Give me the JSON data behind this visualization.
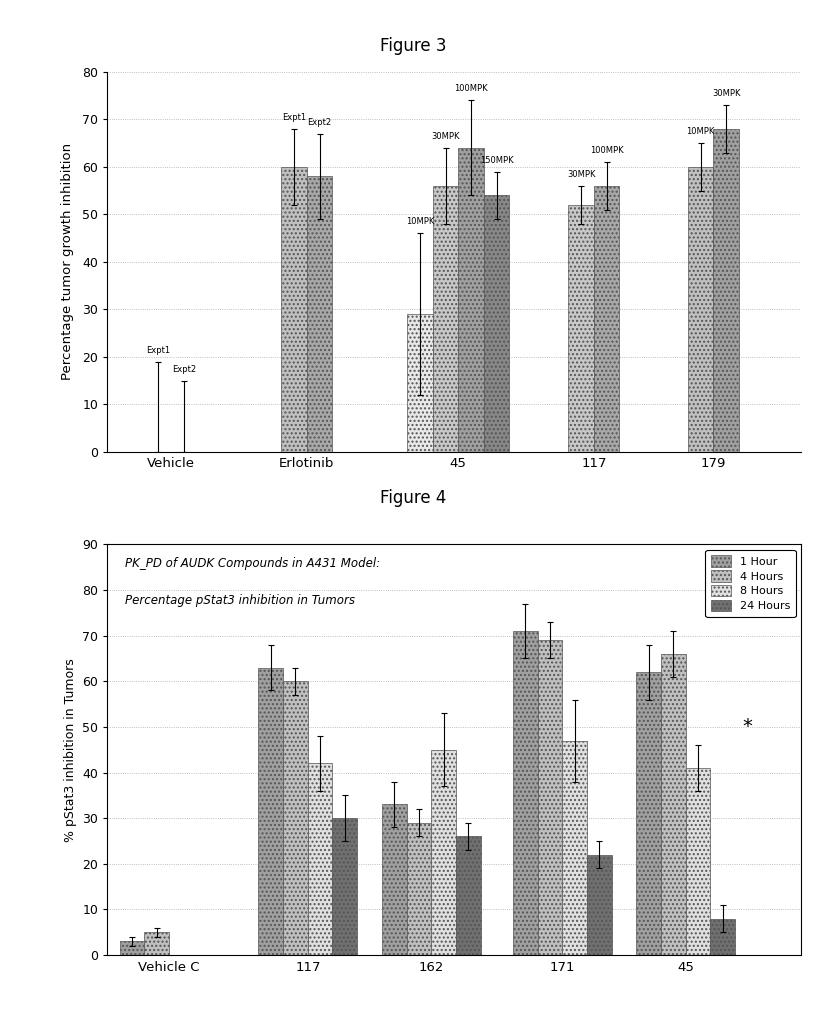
{
  "fig3": {
    "title": "Figure 3",
    "ylabel": "Percentage tumor growth inhibition",
    "ylim": [
      0,
      80
    ],
    "yticks": [
      0,
      10,
      20,
      30,
      40,
      50,
      60,
      70,
      80
    ],
    "groups": [
      "Vehicle",
      "Erlotinib",
      "45",
      "117",
      "179"
    ],
    "group_centers": [
      0.6,
      2.3,
      4.2,
      5.9,
      7.4
    ],
    "bar_width": 0.32,
    "xlim": [
      -0.2,
      8.5
    ],
    "bars": {
      "Vehicle": {
        "bars": [
          {
            "label": "Expt1",
            "value": 0,
            "error_up": 19,
            "error_dn": 0,
            "color": "#d8d8d8",
            "hatch": "...."
          },
          {
            "label": "Expt2",
            "value": 0,
            "error_up": 15,
            "error_dn": 0,
            "color": "#b8b8b8",
            "hatch": "...."
          }
        ]
      },
      "Erlotinib": {
        "bars": [
          {
            "label": "Expt1",
            "value": 60,
            "error_up": 8,
            "error_dn": 8,
            "color": "#c0c0c0",
            "hatch": "...."
          },
          {
            "label": "Expt2",
            "value": 58,
            "error_up": 9,
            "error_dn": 9,
            "color": "#a8a8a8",
            "hatch": "...."
          }
        ]
      },
      "45": {
        "bars": [
          {
            "label": "10MPK",
            "value": 29,
            "error_up": 17,
            "error_dn": 17,
            "color": "#e8e8e8",
            "hatch": "...."
          },
          {
            "label": "30MPK",
            "value": 56,
            "error_up": 8,
            "error_dn": 8,
            "color": "#c8c8c8",
            "hatch": "...."
          },
          {
            "label": "100MPK",
            "value": 64,
            "error_up": 10,
            "error_dn": 10,
            "color": "#a0a0a0",
            "hatch": "...."
          },
          {
            "label": "150MPK",
            "value": 54,
            "error_up": 5,
            "error_dn": 5,
            "color": "#888888",
            "hatch": "...."
          }
        ]
      },
      "117": {
        "bars": [
          {
            "label": "30MPK",
            "value": 52,
            "error_up": 4,
            "error_dn": 4,
            "color": "#c8c8c8",
            "hatch": "...."
          },
          {
            "label": "100MPK",
            "value": 56,
            "error_up": 5,
            "error_dn": 5,
            "color": "#a8a8a8",
            "hatch": "...."
          }
        ]
      },
      "179": {
        "bars": [
          {
            "label": "10MPK",
            "value": 60,
            "error_up": 5,
            "error_dn": 5,
            "color": "#c0c0c0",
            "hatch": "...."
          },
          {
            "label": "30MPK",
            "value": 68,
            "error_up": 5,
            "error_dn": 5,
            "color": "#a0a0a0",
            "hatch": "...."
          }
        ]
      }
    }
  },
  "fig4": {
    "title": "Figure 4",
    "chart_title_line1": "PK_PD of AUDK Compounds in A431 Model:",
    "chart_title_line2": "Percentage pStat3 inhibition in Tumors",
    "ylabel": "% pStat3 inhibition in Tumors",
    "ylim": [
      0,
      90
    ],
    "yticks": [
      0,
      10,
      20,
      30,
      40,
      50,
      60,
      70,
      80,
      90
    ],
    "groups": [
      "Vehicle C",
      "117",
      "162",
      "171",
      "45"
    ],
    "group_centers": [
      0.6,
      2.4,
      4.0,
      5.7,
      7.3
    ],
    "bar_width": 0.32,
    "xlim": [
      -0.2,
      8.8
    ],
    "legend": [
      "1 Hour",
      "4 Hours",
      "8 Hours",
      "24 Hours"
    ],
    "legend_colors": [
      "#a0a0a0",
      "#c0c0c0",
      "#e0e0e0",
      "#707070"
    ],
    "legend_hatches": [
      "....",
      "....",
      "....",
      "...."
    ],
    "bars": {
      "Vehicle C": {
        "bars": [
          {
            "label": "1 Hour",
            "value": 3,
            "error_up": 1,
            "error_dn": 1,
            "color": "#a0a0a0",
            "hatch": "...."
          },
          {
            "label": "4 Hours",
            "value": 5,
            "error_up": 1,
            "error_dn": 1,
            "color": "#c0c0c0",
            "hatch": "...."
          },
          {
            "label": "8 Hours",
            "value": 0,
            "error_up": 0,
            "error_dn": 0,
            "color": "#e0e0e0",
            "hatch": "...."
          },
          {
            "label": "24 Hours",
            "value": 0,
            "error_up": 0,
            "error_dn": 0,
            "color": "#707070",
            "hatch": "...."
          }
        ]
      },
      "117": {
        "bars": [
          {
            "label": "1 Hour",
            "value": 63,
            "error_up": 5,
            "error_dn": 5,
            "color": "#a0a0a0",
            "hatch": "...."
          },
          {
            "label": "4 Hours",
            "value": 60,
            "error_up": 3,
            "error_dn": 3,
            "color": "#c0c0c0",
            "hatch": "...."
          },
          {
            "label": "8 Hours",
            "value": 42,
            "error_up": 6,
            "error_dn": 6,
            "color": "#e0e0e0",
            "hatch": "...."
          },
          {
            "label": "24 Hours",
            "value": 30,
            "error_up": 5,
            "error_dn": 5,
            "color": "#707070",
            "hatch": "...."
          }
        ]
      },
      "162": {
        "bars": [
          {
            "label": "1 Hour",
            "value": 33,
            "error_up": 5,
            "error_dn": 5,
            "color": "#a0a0a0",
            "hatch": "...."
          },
          {
            "label": "4 Hours",
            "value": 29,
            "error_up": 3,
            "error_dn": 3,
            "color": "#c0c0c0",
            "hatch": "...."
          },
          {
            "label": "8 Hours",
            "value": 45,
            "error_up": 8,
            "error_dn": 8,
            "color": "#e0e0e0",
            "hatch": "...."
          },
          {
            "label": "24 Hours",
            "value": 26,
            "error_up": 3,
            "error_dn": 3,
            "color": "#707070",
            "hatch": "...."
          }
        ]
      },
      "171": {
        "bars": [
          {
            "label": "1 Hour",
            "value": 71,
            "error_up": 6,
            "error_dn": 6,
            "color": "#a0a0a0",
            "hatch": "...."
          },
          {
            "label": "4 Hours",
            "value": 69,
            "error_up": 4,
            "error_dn": 4,
            "color": "#c0c0c0",
            "hatch": "...."
          },
          {
            "label": "8 Hours",
            "value": 47,
            "error_up": 9,
            "error_dn": 9,
            "color": "#e0e0e0",
            "hatch": "...."
          },
          {
            "label": "24 Hours",
            "value": 22,
            "error_up": 3,
            "error_dn": 3,
            "color": "#707070",
            "hatch": "...."
          }
        ]
      },
      "45": {
        "bars": [
          {
            "label": "1 Hour",
            "value": 62,
            "error_up": 6,
            "error_dn": 6,
            "color": "#a0a0a0",
            "hatch": "...."
          },
          {
            "label": "4 Hours",
            "value": 66,
            "error_up": 5,
            "error_dn": 5,
            "color": "#c0c0c0",
            "hatch": "...."
          },
          {
            "label": "8 Hours",
            "value": 41,
            "error_up": 5,
            "error_dn": 5,
            "color": "#e0e0e0",
            "hatch": "...."
          },
          {
            "label": "24 Hours",
            "value": 8,
            "error_up": 3,
            "error_dn": 3,
            "color": "#707070",
            "hatch": "...."
          }
        ]
      }
    }
  }
}
